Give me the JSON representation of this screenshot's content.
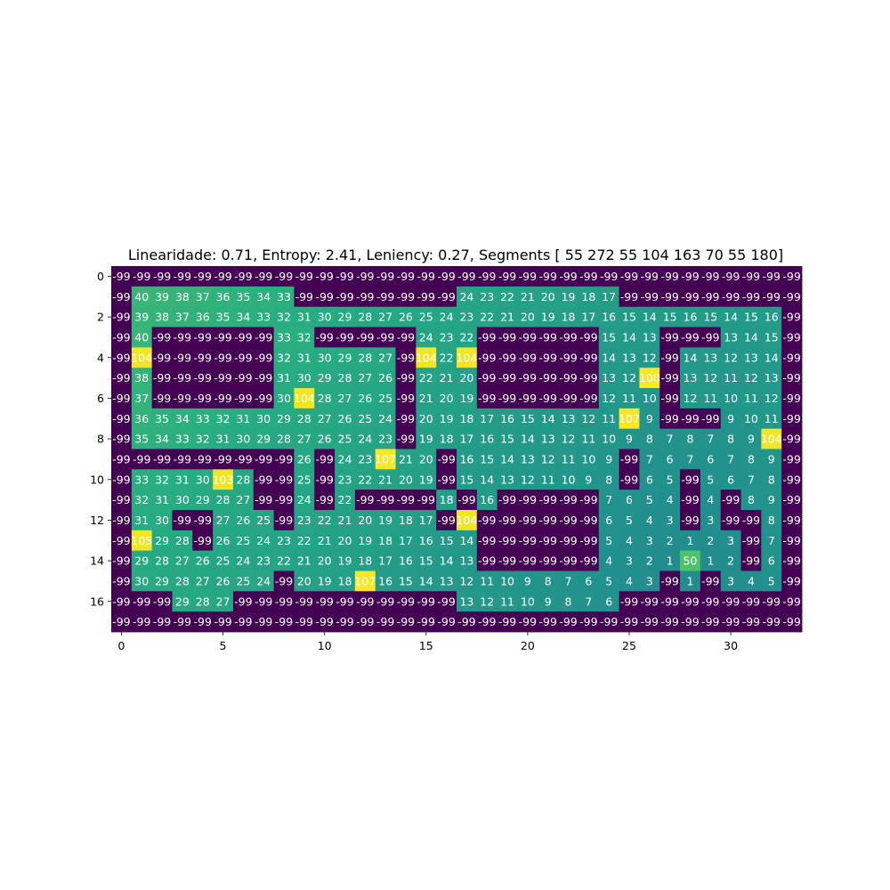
{
  "chart_data": {
    "type": "heatmap",
    "title": "Linearidade: 0.71, Entropy: 2.41, Leniency: 0.27, Segments [ 55 272  55 104 163  70  55 180]",
    "xlabel": "",
    "ylabel": "",
    "colormap": "viridis",
    "vmin": -99,
    "vmax": 108,
    "x_ticks": [
      0,
      5,
      10,
      15,
      20,
      25,
      30
    ],
    "y_ticks": [
      0,
      2,
      4,
      6,
      8,
      10,
      12,
      14,
      16
    ],
    "grid": false,
    "values": [
      [
        -99,
        -99,
        -99,
        -99,
        -99,
        -99,
        -99,
        -99,
        -99,
        -99,
        -99,
        -99,
        -99,
        -99,
        -99,
        -99,
        -99,
        -99,
        -99,
        -99,
        -99,
        -99,
        -99,
        -99,
        -99,
        -99,
        -99,
        -99,
        -99,
        -99,
        -99,
        -99,
        -99,
        -99
      ],
      [
        -99,
        40,
        39,
        38,
        37,
        36,
        35,
        34,
        33,
        -99,
        -99,
        -99,
        -99,
        -99,
        -99,
        -99,
        -99,
        24,
        23,
        22,
        21,
        20,
        19,
        18,
        17,
        -99,
        -99,
        -99,
        -99,
        -99,
        -99,
        -99,
        -99,
        -99
      ],
      [
        -99,
        39,
        38,
        37,
        36,
        35,
        34,
        33,
        32,
        31,
        30,
        29,
        28,
        27,
        26,
        25,
        24,
        23,
        22,
        21,
        20,
        19,
        18,
        17,
        16,
        15,
        14,
        15,
        16,
        15,
        14,
        15,
        16,
        -99
      ],
      [
        -99,
        40,
        -99,
        -99,
        -99,
        -99,
        -99,
        -99,
        33,
        32,
        -99,
        -99,
        -99,
        -99,
        -99,
        24,
        23,
        22,
        -99,
        -99,
        -99,
        -99,
        -99,
        -99,
        15,
        14,
        13,
        -99,
        -99,
        -99,
        13,
        14,
        15,
        -99
      ],
      [
        -99,
        104,
        -99,
        -99,
        -99,
        -99,
        -99,
        -99,
        32,
        31,
        30,
        29,
        28,
        27,
        -99,
        104,
        22,
        104,
        -99,
        -99,
        -99,
        -99,
        -99,
        -99,
        14,
        13,
        12,
        -99,
        14,
        13,
        12,
        13,
        14,
        -99
      ],
      [
        -99,
        38,
        -99,
        -99,
        -99,
        -99,
        -99,
        -99,
        31,
        30,
        29,
        28,
        27,
        26,
        -99,
        22,
        21,
        20,
        -99,
        -99,
        -99,
        -99,
        -99,
        -99,
        13,
        12,
        108,
        -99,
        13,
        12,
        11,
        12,
        13,
        -99
      ],
      [
        -99,
        37,
        -99,
        -99,
        -99,
        -99,
        -99,
        -99,
        30,
        104,
        28,
        27,
        26,
        25,
        -99,
        21,
        20,
        19,
        -99,
        -99,
        -99,
        -99,
        -99,
        -99,
        12,
        11,
        10,
        -99,
        12,
        11,
        10,
        11,
        12,
        -99
      ],
      [
        -99,
        36,
        35,
        34,
        33,
        32,
        31,
        30,
        29,
        28,
        27,
        26,
        25,
        24,
        -99,
        20,
        19,
        18,
        17,
        16,
        15,
        14,
        13,
        12,
        11,
        107,
        9,
        -99,
        -99,
        -99,
        9,
        10,
        11,
        -99
      ],
      [
        -99,
        35,
        34,
        33,
        32,
        31,
        30,
        29,
        28,
        27,
        26,
        25,
        24,
        23,
        -99,
        19,
        18,
        17,
        16,
        15,
        14,
        13,
        12,
        11,
        10,
        9,
        8,
        7,
        8,
        7,
        8,
        9,
        104,
        -99
      ],
      [
        -99,
        -99,
        -99,
        -99,
        -99,
        -99,
        -99,
        -99,
        -99,
        26,
        -99,
        24,
        23,
        107,
        21,
        20,
        -99,
        16,
        15,
        14,
        13,
        12,
        11,
        10,
        9,
        -99,
        7,
        6,
        7,
        6,
        7,
        8,
        9,
        -99
      ],
      [
        -99,
        33,
        32,
        31,
        30,
        103,
        28,
        -99,
        -99,
        25,
        -99,
        23,
        22,
        21,
        20,
        19,
        -99,
        15,
        14,
        13,
        12,
        11,
        10,
        9,
        8,
        -99,
        6,
        5,
        -99,
        5,
        6,
        7,
        8,
        -99
      ],
      [
        -99,
        32,
        31,
        30,
        29,
        28,
        27,
        -99,
        -99,
        24,
        -99,
        22,
        -99,
        -99,
        -99,
        -99,
        18,
        -99,
        16,
        -99,
        -99,
        -99,
        -99,
        -99,
        7,
        6,
        5,
        4,
        -99,
        4,
        -99,
        8,
        9,
        -99
      ],
      [
        -99,
        31,
        30,
        -99,
        -99,
        27,
        26,
        25,
        -99,
        23,
        22,
        21,
        20,
        19,
        18,
        17,
        -99,
        104,
        -99,
        -99,
        -99,
        -99,
        -99,
        -99,
        6,
        5,
        4,
        3,
        -99,
        3,
        -99,
        -99,
        8,
        -99
      ],
      [
        -99,
        105,
        29,
        28,
        -99,
        26,
        25,
        24,
        23,
        22,
        21,
        20,
        19,
        18,
        17,
        16,
        15,
        14,
        -99,
        -99,
        -99,
        -99,
        -99,
        -99,
        5,
        4,
        3,
        2,
        1,
        2,
        3,
        -99,
        7,
        -99
      ],
      [
        -99,
        29,
        28,
        27,
        26,
        25,
        24,
        23,
        22,
        21,
        20,
        19,
        18,
        17,
        16,
        15,
        14,
        13,
        -99,
        -99,
        -99,
        -99,
        -99,
        -99,
        4,
        3,
        2,
        1,
        50,
        1,
        2,
        -99,
        6,
        -99
      ],
      [
        -99,
        30,
        29,
        28,
        27,
        26,
        25,
        24,
        -99,
        20,
        19,
        18,
        107,
        16,
        15,
        14,
        13,
        12,
        11,
        10,
        9,
        8,
        7,
        6,
        5,
        4,
        3,
        -99,
        1,
        -99,
        3,
        4,
        5,
        -99
      ],
      [
        -99,
        -99,
        -99,
        29,
        28,
        27,
        -99,
        -99,
        -99,
        -99,
        -99,
        -99,
        -99,
        -99,
        -99,
        -99,
        -99,
        13,
        12,
        11,
        10,
        9,
        8,
        7,
        6,
        -99,
        -99,
        -99,
        -99,
        -99,
        -99,
        -99,
        -99,
        -99
      ],
      [
        -99,
        -99,
        -99,
        -99,
        -99,
        -99,
        -99,
        -99,
        -99,
        -99,
        -99,
        -99,
        -99,
        -99,
        -99,
        -99,
        -99,
        -99,
        -99,
        -99,
        -99,
        -99,
        -99,
        -99,
        -99,
        -99,
        -99,
        -99,
        -99,
        -99,
        -99,
        -99,
        -99,
        -99
      ]
    ]
  }
}
